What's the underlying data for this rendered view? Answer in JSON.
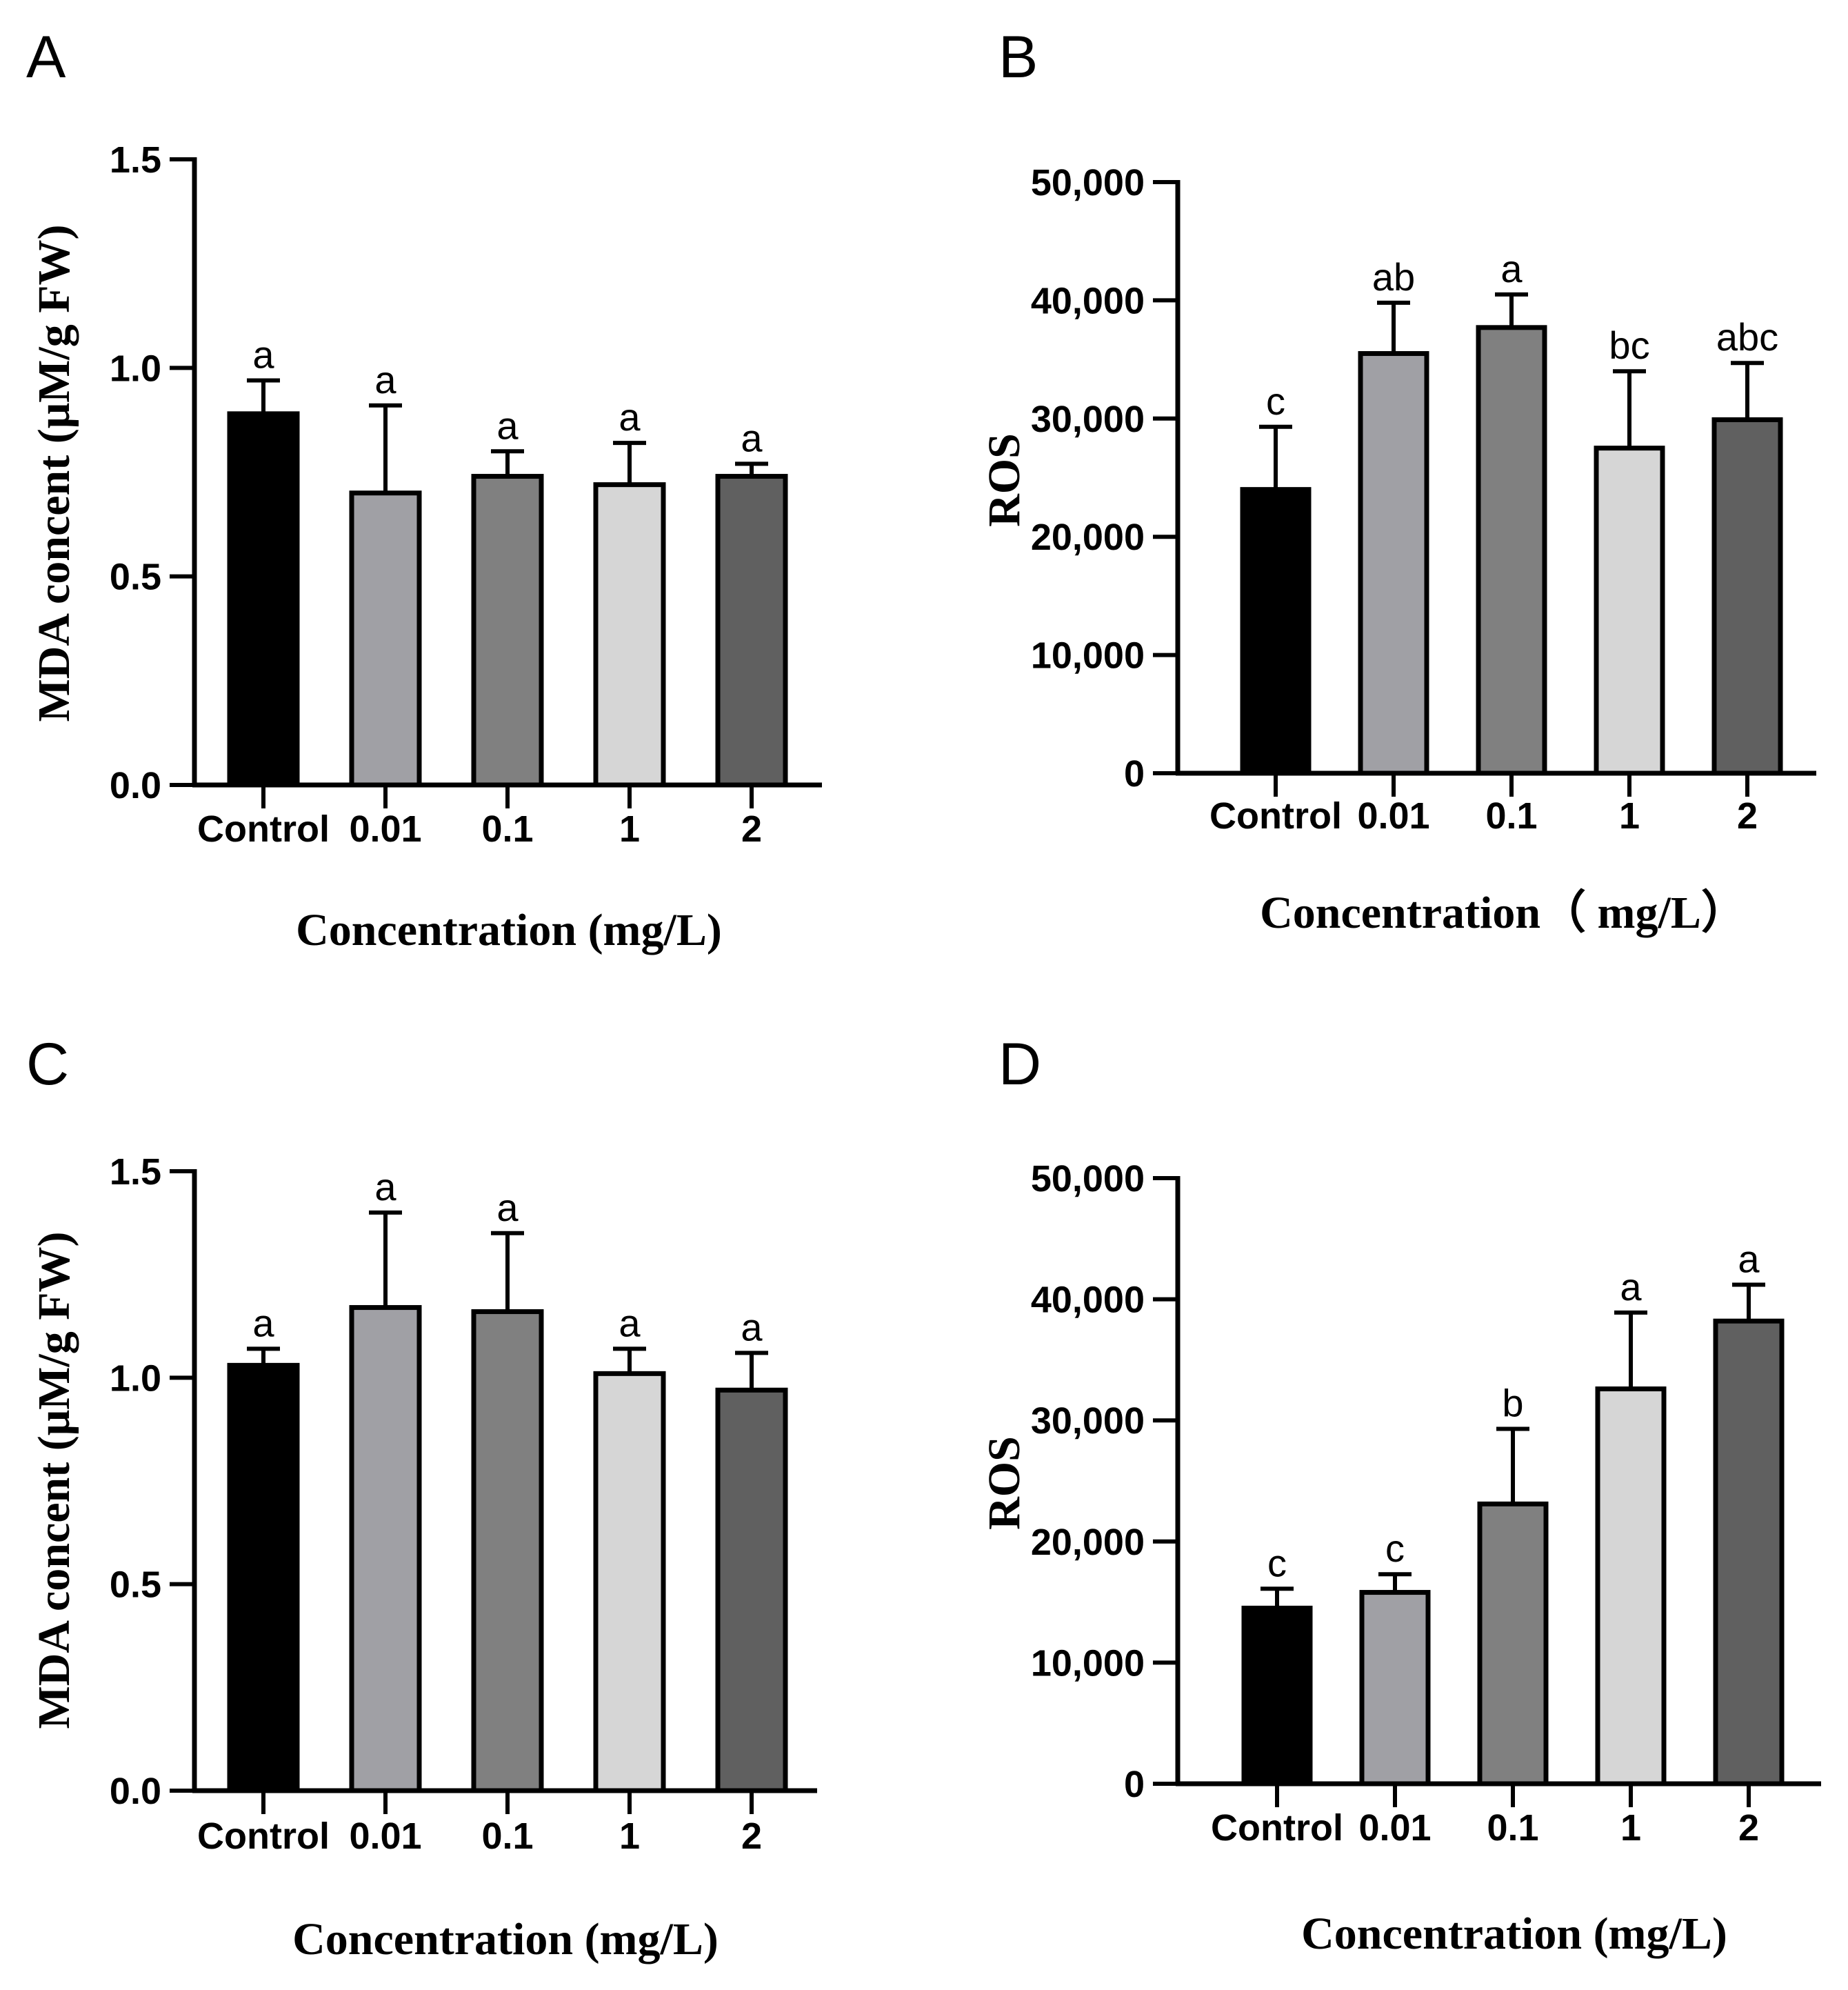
{
  "chart_data": [
    {
      "panel": "A",
      "type": "bar",
      "categories": [
        "Control",
        "0.01",
        "0.1",
        "1",
        "2"
      ],
      "values": [
        0.89,
        0.7,
        0.74,
        0.72,
        0.74
      ],
      "errors": [
        0.08,
        0.21,
        0.06,
        0.1,
        0.03
      ],
      "significance": [
        "a",
        "a",
        "a",
        "a",
        "a"
      ],
      "colors": [
        "#000000",
        "#a0a0a5",
        "#808080",
        "#d6d6d6",
        "#606060"
      ],
      "ylabel": "MDA concent (μM/g FW)",
      "xlabel": "Concentration (mg/L)",
      "ylim": [
        0,
        1.5
      ],
      "yticks": [
        0.0,
        0.5,
        1.0,
        1.5
      ],
      "ytick_labels": [
        "0.0",
        "0.5",
        "1.0",
        "1.5"
      ],
      "grid": false
    },
    {
      "panel": "B",
      "type": "bar",
      "categories": [
        "Control",
        "0.01",
        "0.1",
        "1",
        "2"
      ],
      "values": [
        24000,
        35500,
        37700,
        27500,
        29900
      ],
      "errors": [
        5300,
        4300,
        2800,
        6500,
        4800
      ],
      "significance": [
        "c",
        "ab",
        "a",
        "bc",
        "abc"
      ],
      "colors": [
        "#000000",
        "#a0a0a5",
        "#808080",
        "#d6d6d6",
        "#606060"
      ],
      "ylabel": "ROS",
      "xlabel": "Concentration（ mg/L）",
      "ylim": [
        0,
        50000
      ],
      "yticks": [
        0,
        10000,
        20000,
        30000,
        40000,
        50000
      ],
      "ytick_labels": [
        "0",
        "10,000",
        "20,000",
        "30,000",
        "40,000",
        "50,000"
      ],
      "grid": false
    },
    {
      "panel": "C",
      "type": "bar",
      "categories": [
        "Control",
        "0.01",
        "0.1",
        "1",
        "2"
      ],
      "values": [
        1.03,
        1.17,
        1.16,
        1.01,
        0.97
      ],
      "errors": [
        0.04,
        0.23,
        0.19,
        0.06,
        0.09
      ],
      "significance": [
        "a",
        "a",
        "a",
        "a",
        "a"
      ],
      "colors": [
        "#000000",
        "#a0a0a5",
        "#808080",
        "#d6d6d6",
        "#606060"
      ],
      "ylabel": "MDA concent (μM/g FW)",
      "xlabel": "Concentration (mg/L)",
      "ylim": [
        0,
        1.5
      ],
      "yticks": [
        0.0,
        0.5,
        1.0,
        1.5
      ],
      "ytick_labels": [
        "0.0",
        "0.5",
        "1.0",
        "1.5"
      ],
      "grid": false
    },
    {
      "panel": "D",
      "type": "bar",
      "categories": [
        "Control",
        "0.01",
        "0.1",
        "1",
        "2"
      ],
      "values": [
        14500,
        15800,
        23100,
        32600,
        38200
      ],
      "errors": [
        1600,
        1500,
        6200,
        6300,
        3000
      ],
      "significance": [
        "c",
        "c",
        "b",
        "a",
        "a"
      ],
      "colors": [
        "#000000",
        "#a0a0a5",
        "#808080",
        "#d6d6d6",
        "#606060"
      ],
      "ylabel": "ROS",
      "xlabel": "Concentration (mg/L)",
      "ylim": [
        0,
        50000
      ],
      "yticks": [
        0,
        10000,
        20000,
        30000,
        40000,
        50000
      ],
      "ytick_labels": [
        "0",
        "10,000",
        "20,000",
        "30,000",
        "40,000",
        "50,000"
      ],
      "grid": false
    }
  ]
}
